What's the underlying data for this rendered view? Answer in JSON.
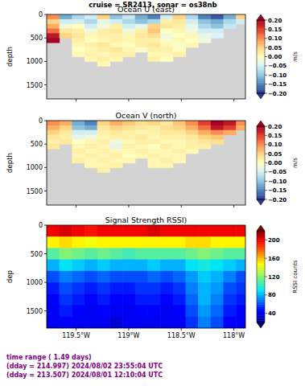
{
  "title": "cruise = SR2413,  sonar = os38nb",
  "footer": [
    "time range ( 1.49 days)",
    "(dday = 214.997) 2024/08/02 23:55:04 UTC",
    "(dday = 213.507) 2024/08/01 12:10:04 UTC"
  ],
  "chart_data": [
    {
      "type": "heatmap",
      "title": "Ocean U (east)",
      "y_label": "depth",
      "tick_labels": "y",
      "xlim": [
        -119.78,
        -117.89
      ],
      "ylim": [
        1800,
        0
      ],
      "xticks": [
        {
          "value": -119.5,
          "label": "119.5°W"
        },
        {
          "value": -119,
          "label": "119°W"
        },
        {
          "value": -118.5,
          "label": "118.5°W"
        },
        {
          "value": -118,
          "label": "118°W"
        }
      ],
      "yticks": [
        0,
        500,
        1000,
        1500
      ],
      "x_edges": [
        -119.78,
        -119.66,
        -119.54,
        -119.42,
        -119.3,
        -119.18,
        -119.06,
        -118.94,
        -118.82,
        -118.7,
        -118.58,
        -118.46,
        -118.34,
        -118.22,
        -118.1,
        -117.98,
        -117.89
      ],
      "depth_edges": [
        0,
        100,
        200,
        300,
        400,
        500,
        600,
        700,
        800,
        900,
        1000,
        1100
      ],
      "values": [
        [
          0.1,
          -0.12,
          -0.08,
          -0.05,
          0.05,
          -0.1,
          -0.06,
          -0.12,
          -0.15,
          -0.05,
          0.05,
          -0.08,
          -0.15,
          -0.18,
          -0.12,
          0.05
        ],
        [
          0.05,
          -0.05,
          -0.05,
          -0.08,
          -0.03,
          -0.05,
          -0.08,
          -0.1,
          -0.08,
          0.02,
          0.03,
          -0.05,
          -0.1,
          -0.12,
          -0.08,
          -0.05
        ],
        [
          0.08,
          -0.02,
          0.0,
          -0.05,
          -0.02,
          0.02,
          -0.05,
          -0.03,
          0.05,
          0.03,
          0.02,
          -0.03,
          -0.08,
          -0.1,
          -0.06,
          null
        ],
        [
          0.12,
          0.03,
          0.02,
          -0.02,
          0.02,
          0.03,
          -0.02,
          0.02,
          0.06,
          0.0,
          0.01,
          -0.02,
          -0.05,
          -0.05,
          null,
          null
        ],
        [
          0.18,
          0.05,
          0.03,
          0.01,
          0.02,
          0.02,
          0.01,
          0.03,
          0.04,
          -0.02,
          0.0,
          0.01,
          -0.03,
          -0.04,
          null,
          null
        ],
        [
          0.2,
          null,
          0.02,
          0.0,
          0.01,
          0.02,
          0.01,
          0.02,
          0.02,
          -0.01,
          0.01,
          0.0,
          -0.02,
          null,
          null,
          null
        ],
        [
          null,
          null,
          0.01,
          0.02,
          0.03,
          0.01,
          0.0,
          0.02,
          0.03,
          0.01,
          -0.01,
          0.01,
          null,
          null,
          null,
          null
        ],
        [
          null,
          null,
          0.0,
          0.01,
          0.02,
          0.03,
          0.01,
          -0.01,
          0.02,
          0.02,
          0.0,
          null,
          null,
          null,
          null,
          null
        ],
        [
          null,
          null,
          0.01,
          0.02,
          0.01,
          0.02,
          0.02,
          null,
          0.01,
          0.01,
          0.02,
          null,
          null,
          null,
          null,
          null
        ],
        [
          null,
          null,
          null,
          0.01,
          0.02,
          0.01,
          null,
          null,
          0.02,
          0.0,
          null,
          null,
          null,
          null,
          null,
          null
        ],
        [
          null,
          null,
          null,
          null,
          0.01,
          null,
          null,
          null,
          null,
          null,
          null,
          null,
          null,
          null,
          null,
          null
        ]
      ],
      "colorbar": {
        "label": "m/s",
        "range": [
          -0.2,
          0.2
        ],
        "ticks": [
          {
            "value": 0.2,
            "label": "0.20"
          },
          0.15,
          {
            "value": 0.1,
            "label": "0.10"
          },
          0.05,
          {
            "value": 0,
            "label": "0.00"
          },
          {
            "value": -0.05,
            "label": "−0.05"
          },
          {
            "value": -0.1,
            "label": "−0.10"
          },
          {
            "value": -0.15,
            "label": "−0.15"
          },
          {
            "value": -0.2,
            "label": "−0.20"
          }
        ]
      }
    },
    {
      "type": "heatmap",
      "title": "Ocean V (north)",
      "y_label": "depth",
      "tick_labels": "y",
      "xlim": [
        -119.78,
        -117.89
      ],
      "ylim": [
        1800,
        0
      ],
      "xticks": [
        {
          "value": -119.5,
          "label": "119.5°W"
        },
        {
          "value": -119,
          "label": "119°W"
        },
        {
          "value": -118.5,
          "label": "118.5°W"
        },
        {
          "value": -118,
          "label": "118°W"
        }
      ],
      "yticks": [
        0,
        500,
        1000,
        1500
      ],
      "x_edges": [
        -119.78,
        -119.66,
        -119.54,
        -119.42,
        -119.3,
        -119.18,
        -119.06,
        -118.94,
        -118.82,
        -118.7,
        -118.58,
        -118.46,
        -118.34,
        -118.22,
        -118.1,
        -117.98,
        -117.89
      ],
      "depth_edges": [
        0,
        100,
        200,
        300,
        400,
        500,
        600,
        700,
        800,
        900,
        1000,
        1100
      ],
      "values": [
        [
          0.1,
          0.08,
          -0.12,
          -0.15,
          0.05,
          0.08,
          0.06,
          0.04,
          0.05,
          0.03,
          0.06,
          0.1,
          0.15,
          0.2,
          0.18,
          0.1
        ],
        [
          0.08,
          0.05,
          -0.1,
          -0.12,
          0.03,
          0.05,
          0.04,
          0.03,
          0.02,
          0.04,
          0.05,
          0.08,
          0.12,
          0.18,
          0.15,
          0.08
        ],
        [
          0.05,
          0.03,
          -0.05,
          -0.05,
          0.02,
          0.03,
          0.02,
          0.01,
          0.02,
          0.03,
          0.03,
          0.05,
          0.08,
          0.1,
          0.08,
          null
        ],
        [
          0.03,
          0.02,
          -0.03,
          -0.02,
          0.01,
          0.02,
          0.02,
          0.03,
          0.01,
          0.02,
          0.02,
          0.03,
          0.05,
          0.06,
          null,
          null
        ],
        [
          0.02,
          0.03,
          0.0,
          0.01,
          0.02,
          -0.02,
          0.01,
          0.02,
          0.02,
          0.01,
          0.01,
          0.02,
          0.03,
          0.04,
          null,
          null
        ],
        [
          0.03,
          null,
          0.01,
          0.02,
          0.01,
          -0.03,
          0.02,
          0.01,
          0.0,
          0.02,
          0.01,
          0.02,
          0.02,
          null,
          null,
          null
        ],
        [
          null,
          null,
          0.02,
          0.01,
          0.02,
          0.01,
          0.01,
          0.02,
          0.01,
          0.01,
          0.02,
          0.01,
          null,
          null,
          null,
          null
        ],
        [
          null,
          null,
          0.01,
          0.02,
          0.01,
          0.02,
          0.0,
          0.01,
          0.02,
          0.01,
          0.01,
          null,
          null,
          null,
          null,
          null
        ],
        [
          null,
          null,
          0.02,
          0.01,
          0.02,
          0.01,
          0.01,
          null,
          0.01,
          0.02,
          0.01,
          null,
          null,
          null,
          null,
          null
        ],
        [
          null,
          null,
          null,
          0.01,
          0.01,
          0.02,
          null,
          null,
          0.01,
          0.01,
          null,
          null,
          null,
          null,
          null,
          null
        ],
        [
          null,
          null,
          null,
          null,
          0.02,
          null,
          null,
          null,
          null,
          null,
          null,
          null,
          null,
          null,
          null,
          null
        ]
      ],
      "colorbar": {
        "label": "m/s",
        "range": [
          -0.2,
          0.2
        ],
        "ticks": [
          {
            "value": 0.2,
            "label": "0.20"
          },
          0.15,
          {
            "value": 0.1,
            "label": "0.10"
          },
          0.05,
          {
            "value": 0,
            "label": "0.00"
          },
          {
            "value": -0.05,
            "label": "−0.05"
          },
          {
            "value": -0.1,
            "label": "−0.10"
          },
          {
            "value": -0.15,
            "label": "−0.15"
          },
          {
            "value": -0.2,
            "label": "−0.20"
          }
        ]
      }
    },
    {
      "type": "heatmap",
      "title": "Signal Strength RSSI)",
      "y_label": "dep",
      "xlim": [
        -119.78,
        -117.89
      ],
      "ylim": [
        1800,
        0
      ],
      "xticks": [
        {
          "value": -119.5,
          "label": "119.5°W"
        },
        {
          "value": -119,
          "label": "119°W"
        },
        {
          "value": -118.5,
          "label": "118.5°W"
        },
        {
          "value": -118,
          "label": "118°W"
        }
      ],
      "yticks": [
        0,
        500,
        1000,
        1500
      ],
      "x_edges": [
        -119.78,
        -119.66,
        -119.54,
        -119.42,
        -119.3,
        -119.18,
        -119.06,
        -118.94,
        -118.82,
        -118.7,
        -118.58,
        -118.46,
        -118.34,
        -118.22,
        -118.1,
        -117.98,
        -117.89
      ],
      "depth_edges": [
        0,
        200,
        400,
        600,
        800,
        1000,
        1200,
        1400,
        1600,
        1800
      ],
      "values": [
        [
          200,
          205,
          200,
          195,
          200,
          200,
          200,
          200,
          205,
          200,
          200,
          200,
          200,
          200,
          200,
          200
        ],
        [
          150,
          155,
          150,
          145,
          150,
          150,
          150,
          150,
          150,
          150,
          150,
          155,
          155,
          150,
          150,
          150
        ],
        [
          110,
          120,
          115,
          110,
          115,
          110,
          105,
          110,
          110,
          110,
          110,
          115,
          120,
          115,
          110,
          110
        ],
        [
          80,
          90,
          85,
          80,
          85,
          80,
          80,
          80,
          85,
          80,
          80,
          90,
          95,
          90,
          85,
          80
        ],
        [
          60,
          70,
          65,
          60,
          65,
          60,
          60,
          60,
          65,
          60,
          65,
          75,
          85,
          80,
          70,
          60
        ],
        [
          50,
          60,
          55,
          50,
          55,
          50,
          50,
          55,
          55,
          50,
          55,
          70,
          80,
          75,
          60,
          55
        ],
        [
          45,
          55,
          50,
          45,
          50,
          45,
          45,
          50,
          50,
          45,
          50,
          65,
          80,
          70,
          55,
          50
        ],
        [
          40,
          50,
          45,
          40,
          45,
          40,
          40,
          45,
          45,
          40,
          45,
          60,
          75,
          65,
          50,
          45
        ],
        [
          40,
          45,
          40,
          40,
          40,
          35,
          40,
          40,
          40,
          40,
          40,
          55,
          70,
          60,
          45,
          40
        ]
      ],
      "colorbar": {
        "label": "RSSI counts",
        "range": [
          20,
          220
        ],
        "ticks": [
          40,
          80,
          120,
          160,
          200
        ]
      }
    }
  ]
}
